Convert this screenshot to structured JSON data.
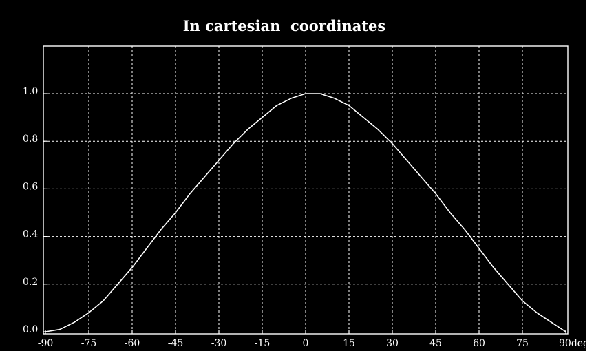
{
  "colors": {
    "background": "#000000",
    "foreground": "#ffffff",
    "border": "#ffffff"
  },
  "chart_data": {
    "type": "line",
    "title": "In cartesian  coordinates",
    "xlabel": "",
    "ylabel": "",
    "x_unit": "deg",
    "xlim": [
      -90,
      90
    ],
    "ylim": [
      0.0,
      1.2
    ],
    "grid": true,
    "grid_style": "dashed",
    "x_ticks": [
      -90,
      -75,
      -60,
      -45,
      -30,
      -15,
      0,
      15,
      30,
      45,
      60,
      75,
      90
    ],
    "x_tick_labels": [
      "-90",
      "-75",
      "-60",
      "-45",
      "-30",
      "-15",
      "0",
      "15",
      "30",
      "45",
      "60",
      "75",
      "90deg"
    ],
    "y_ticks": [
      0.0,
      0.2,
      0.4,
      0.6,
      0.8,
      1.0
    ],
    "y_tick_labels": [
      "0.0",
      "0.2",
      "0.4",
      "0.6",
      "0.8",
      "1.0"
    ],
    "series": [
      {
        "x": [
          -90,
          -85,
          -80,
          -75,
          -70,
          -65,
          -60,
          -55,
          -50,
          -45,
          -40,
          -35,
          -30,
          -25,
          -20,
          -15,
          -10,
          -5,
          0,
          5,
          10,
          15,
          20,
          25,
          30,
          35,
          40,
          45,
          50,
          55,
          60,
          65,
          70,
          75,
          80,
          85,
          90
        ],
        "y": [
          0.0,
          0.01,
          0.04,
          0.08,
          0.13,
          0.2,
          0.27,
          0.35,
          0.43,
          0.5,
          0.58,
          0.65,
          0.72,
          0.79,
          0.85,
          0.9,
          0.95,
          0.98,
          1.0,
          1.0,
          0.98,
          0.95,
          0.9,
          0.85,
          0.79,
          0.72,
          0.65,
          0.58,
          0.5,
          0.43,
          0.35,
          0.27,
          0.2,
          0.13,
          0.08,
          0.04,
          0.0
        ]
      }
    ]
  }
}
